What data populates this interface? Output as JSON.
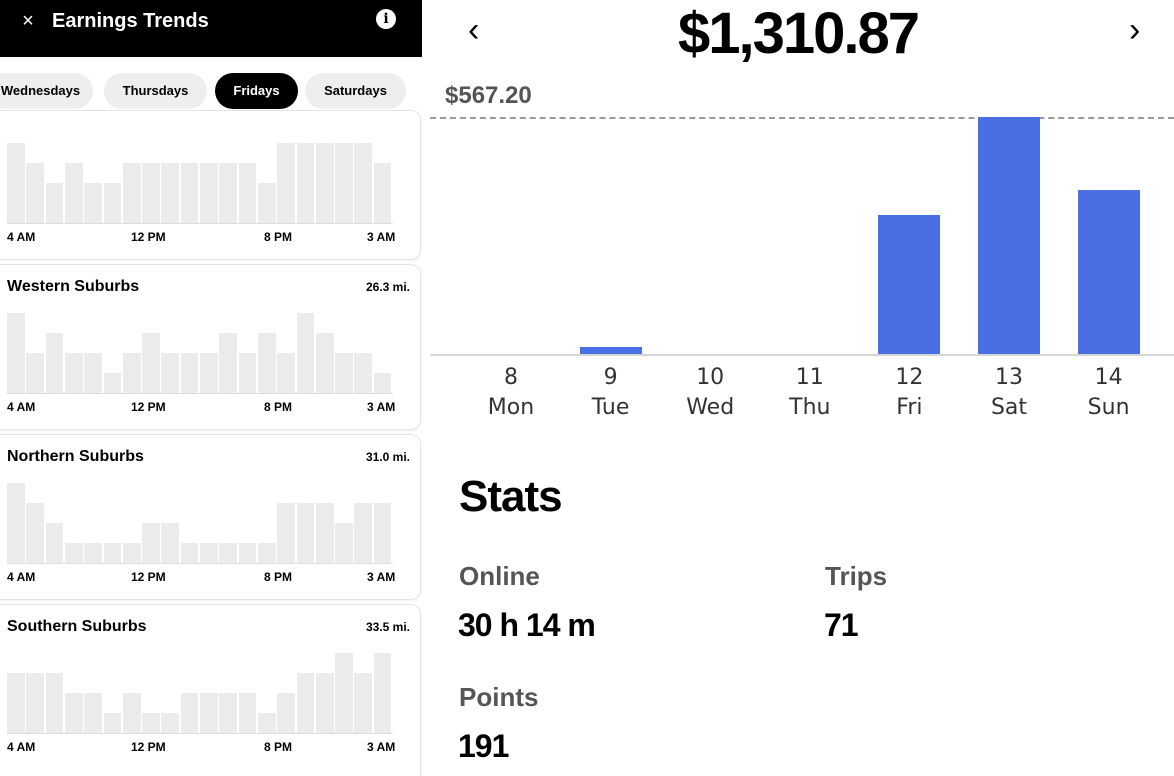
{
  "header": {
    "close_glyph": "×",
    "title": "Earnings Trends",
    "info_glyph": "i"
  },
  "day_tabs": [
    {
      "label": "Wednesdays",
      "active": false
    },
    {
      "label": "Thursdays",
      "active": false
    },
    {
      "label": "Fridays",
      "active": true
    },
    {
      "label": "Saturdays",
      "active": false
    }
  ],
  "hour_labels": [
    "4 AM",
    "12 PM",
    "8 PM",
    "3 AM"
  ],
  "areas": [
    {
      "name": "",
      "distance": "",
      "bars": [
        1.0,
        0.75,
        0.5,
        0.75,
        0.5,
        0.5,
        0.75,
        0.75,
        0.75,
        0.75,
        0.75,
        0.75,
        0.75,
        0.5,
        1.0,
        1.0,
        1.0,
        1.0,
        1.0,
        0.75
      ]
    },
    {
      "name": "Western Suburbs",
      "distance": "26.3 mi.",
      "bars": [
        1.0,
        0.5,
        0.75,
        0.5,
        0.5,
        0.25,
        0.5,
        0.75,
        0.5,
        0.5,
        0.5,
        0.75,
        0.5,
        0.75,
        0.5,
        1.0,
        0.75,
        0.5,
        0.5,
        0.25
      ]
    },
    {
      "name": "Northern Suburbs",
      "distance": "31.0 mi.",
      "bars": [
        1.0,
        0.75,
        0.5,
        0.25,
        0.25,
        0.25,
        0.25,
        0.5,
        0.5,
        0.25,
        0.25,
        0.25,
        0.25,
        0.25,
        0.75,
        0.75,
        0.75,
        0.5,
        0.75,
        0.75
      ]
    },
    {
      "name": "Southern Suburbs",
      "distance": "33.5 mi.",
      "bars": [
        0.75,
        0.75,
        0.75,
        0.5,
        0.5,
        0.25,
        0.5,
        0.25,
        0.25,
        0.5,
        0.5,
        0.5,
        0.5,
        0.25,
        0.5,
        0.75,
        0.75,
        1.0,
        0.75,
        1.0
      ]
    }
  ],
  "week_summary": {
    "total": "$1,310.87",
    "prev_glyph": "‹",
    "next_glyph": "›",
    "max_label": "$567.20",
    "max_value": 567.2,
    "days": [
      {
        "date": "8",
        "day": "Mon",
        "value": 0
      },
      {
        "date": "9",
        "day": "Tue",
        "value": 17
      },
      {
        "date": "10",
        "day": "Wed",
        "value": 0
      },
      {
        "date": "11",
        "day": "Thu",
        "value": 0
      },
      {
        "date": "12",
        "day": "Fri",
        "value": 333
      },
      {
        "date": "13",
        "day": "Sat",
        "value": 567.2
      },
      {
        "date": "14",
        "day": "Sun",
        "value": 393
      }
    ]
  },
  "stats": {
    "title": "Stats",
    "online_label": "Online",
    "online_value": "30 h 14 m",
    "trips_label": "Trips",
    "trips_value": "71",
    "points_label": "Points",
    "points_value": "191"
  },
  "colors": {
    "bar": "#4a6fe3",
    "mini_bar": "#ebebeb",
    "header_bg": "#000000"
  }
}
